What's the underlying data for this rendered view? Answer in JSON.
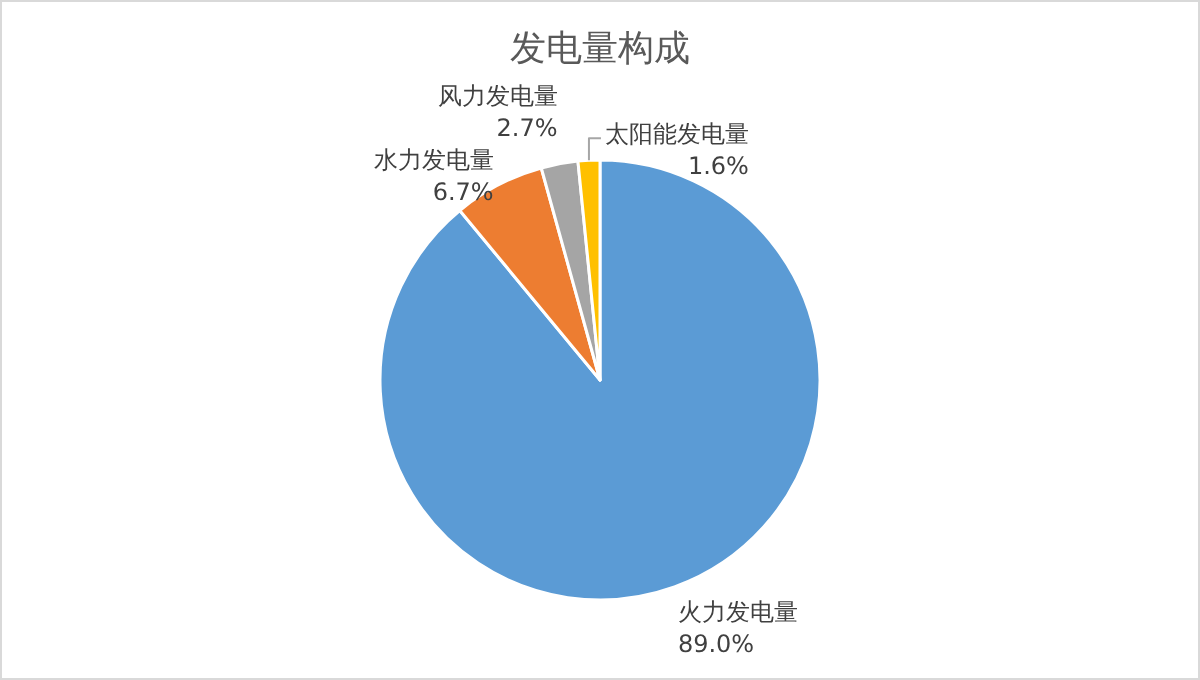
{
  "chart_data": {
    "type": "pie",
    "title": "发电量构成",
    "categories": [
      "火力发电量",
      "水力发电量",
      "风力发电量",
      "太阳能发电量"
    ],
    "values": [
      89.0,
      6.7,
      2.7,
      1.6
    ],
    "colors": [
      "#5b9bd5",
      "#ed7d31",
      "#a5a5a5",
      "#ffc000"
    ],
    "value_labels": [
      "89.0%",
      "6.7%",
      "2.7%",
      "1.6%"
    ]
  }
}
